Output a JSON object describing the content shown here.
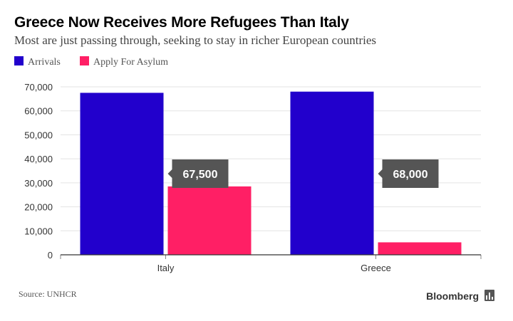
{
  "header": {
    "title": "Greece Now Receives More Refugees Than Italy",
    "subtitle": "Most are just passing through, seeking to stay in richer European countries"
  },
  "legend": [
    {
      "label": "Arrivals",
      "color": "#2200cc"
    },
    {
      "label": "Apply For Asylum",
      "color": "#ff1f65"
    }
  ],
  "chart_data": {
    "type": "bar",
    "categories": [
      "Italy",
      "Greece"
    ],
    "series": [
      {
        "name": "Arrivals",
        "values": [
          67500,
          68000
        ],
        "color": "#2200cc"
      },
      {
        "name": "Apply For Asylum",
        "values": [
          28500,
          5200
        ],
        "color": "#ff1f65"
      }
    ],
    "yticks": [
      0,
      10000,
      20000,
      30000,
      40000,
      50000,
      60000,
      70000
    ],
    "ytick_labels": [
      "0",
      "10,000",
      "20,000",
      "30,000",
      "40,000",
      "50,000",
      "60,000",
      "70,000"
    ],
    "ylim": [
      0,
      70000
    ],
    "grid": true,
    "annotations": [
      {
        "category": "Italy",
        "series": "Arrivals",
        "label": "67,500"
      },
      {
        "category": "Greece",
        "series": "Arrivals",
        "label": "68,000"
      }
    ]
  },
  "footer": {
    "source": "Source: UNHCR",
    "brand": "Bloomberg",
    "brand_icon": "bar-chart-icon"
  }
}
